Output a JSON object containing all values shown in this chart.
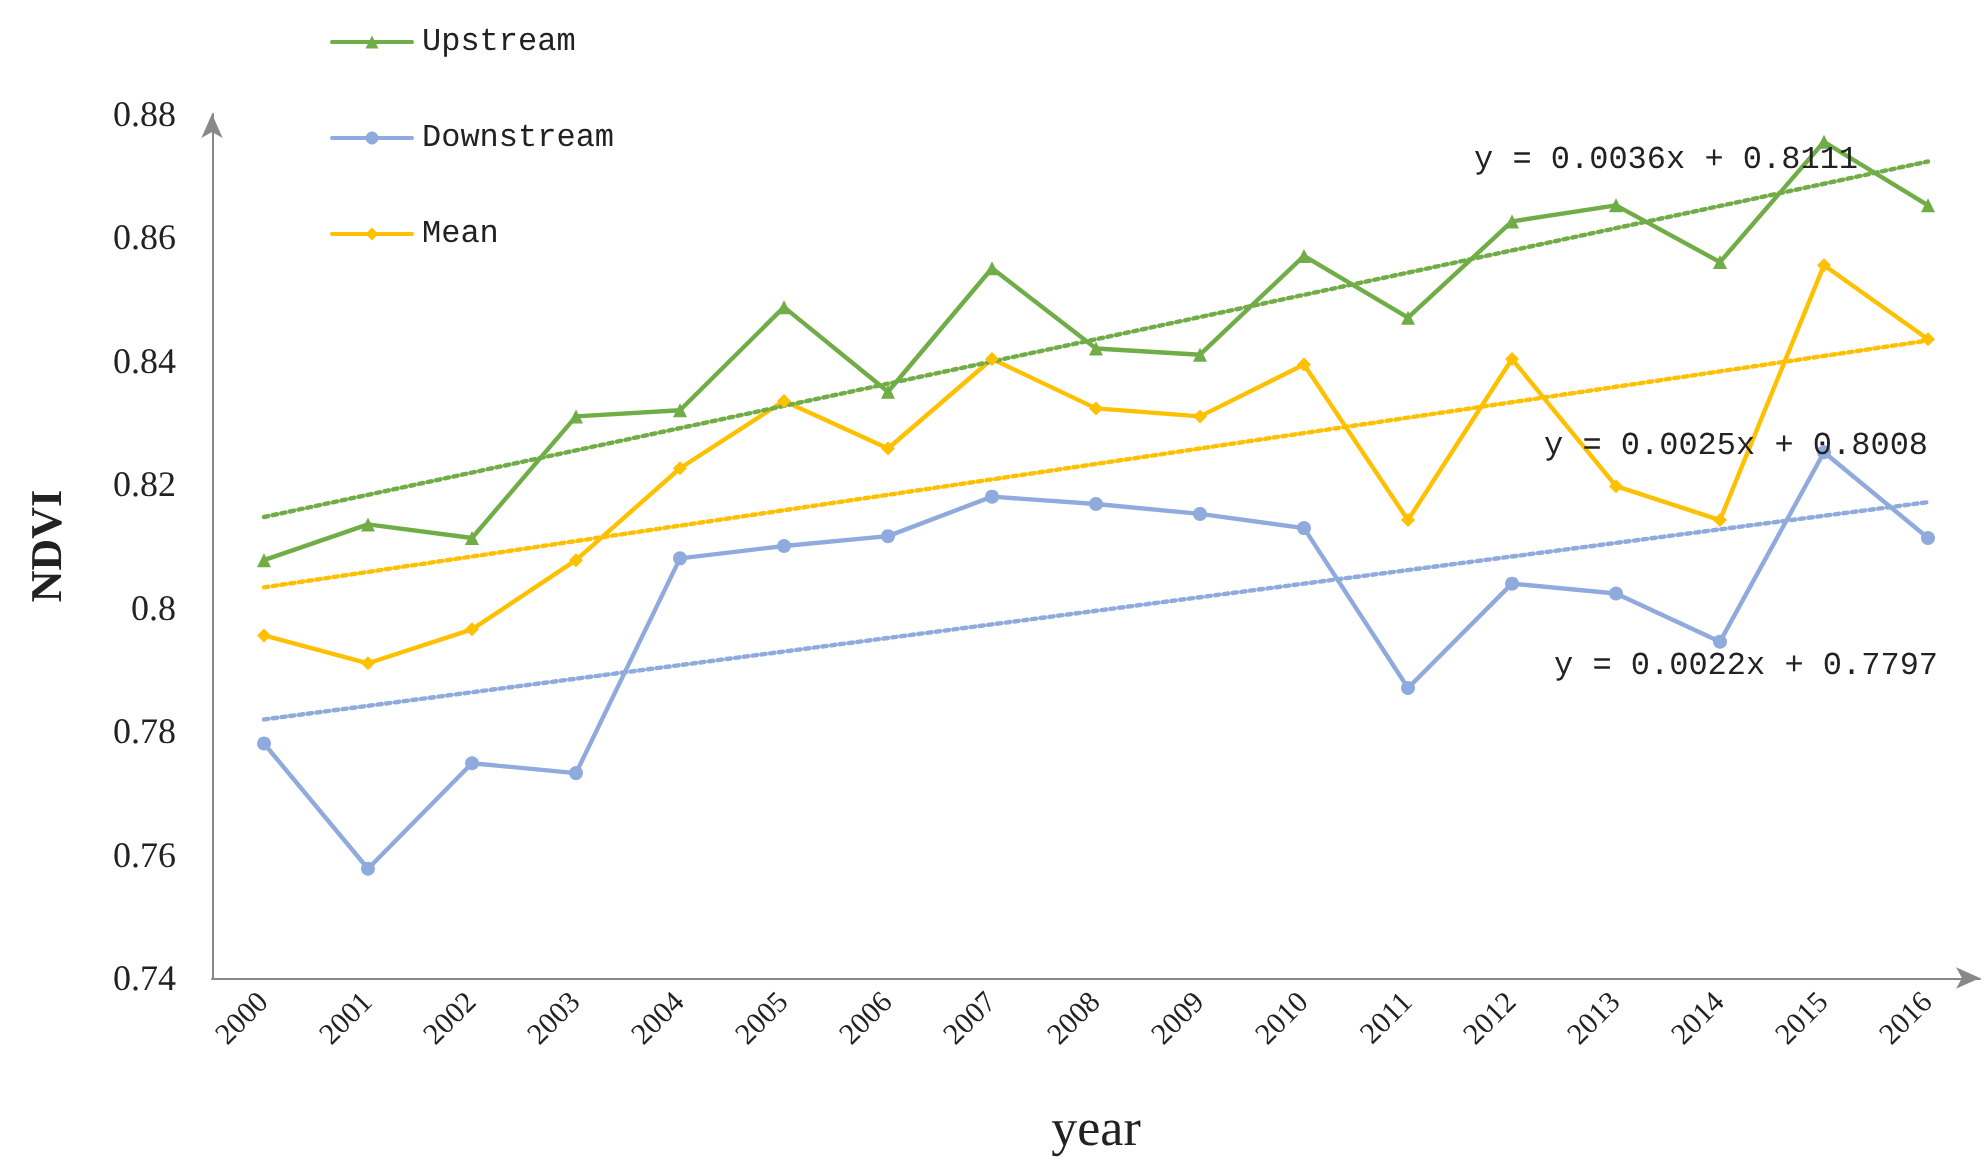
{
  "chart_data": {
    "type": "line",
    "xlabel": "year",
    "ylabel": "NDVI",
    "categories": [
      "2000",
      "2001",
      "2002",
      "2003",
      "2004",
      "2005",
      "2006",
      "2007",
      "2008",
      "2009",
      "2010",
      "2011",
      "2012",
      "2013",
      "2014",
      "2015",
      "2016"
    ],
    "series": [
      {
        "name": "Upstream",
        "color": "#70ad47",
        "marker": "triangle",
        "values": [
          0.8077,
          0.8135,
          0.8113,
          0.831,
          0.832,
          0.8487,
          0.835,
          0.855,
          0.842,
          0.841,
          0.857,
          0.847,
          0.8626,
          0.8652,
          0.856,
          0.8755,
          0.8652
        ]
      },
      {
        "name": "Downstream",
        "color": "#8faadc",
        "marker": "circle",
        "values": [
          0.778,
          0.7577,
          0.7748,
          0.7732,
          0.808,
          0.81,
          0.8116,
          0.818,
          0.8168,
          0.8152,
          0.8129,
          0.787,
          0.8039,
          0.8023,
          0.7945,
          0.8252,
          0.8113
        ]
      },
      {
        "name": "Mean",
        "color": "#ffc000",
        "marker": "diamond",
        "values": [
          0.7955,
          0.791,
          0.7965,
          0.8077,
          0.8226,
          0.8335,
          0.8258,
          0.8403,
          0.8323,
          0.831,
          0.8394,
          0.8142,
          0.8403,
          0.8197,
          0.8142,
          0.8555,
          0.8435
        ]
      },
      {
        "type": "line",
        "color": "#70ad47",
        "marker": "none",
        "line_style": "dotted",
        "values": [
          0.8147,
          0.8183,
          0.8219,
          0.8255,
          0.8291,
          0.8327,
          0.8363,
          0.8399,
          0.8435,
          0.8471,
          0.8507,
          0.8543,
          0.8579,
          0.8615,
          0.8651,
          0.8687,
          0.8723
        ]
      },
      {
        "type": "line",
        "color": "#8faadc",
        "marker": "none",
        "line_style": "dotted",
        "values": [
          0.7819,
          0.7841,
          0.7863,
          0.7885,
          0.7907,
          0.7929,
          0.7951,
          0.7973,
          0.7995,
          0.8017,
          0.8039,
          0.8061,
          0.8083,
          0.8105,
          0.8127,
          0.8149,
          0.8171
        ]
      },
      {
        "type": "line",
        "color": "#ffc000",
        "marker": "none",
        "line_style": "dotted",
        "values": [
          0.8033,
          0.8058,
          0.8083,
          0.8108,
          0.8133,
          0.8158,
          0.8183,
          0.8208,
          0.8233,
          0.8258,
          0.8283,
          0.8308,
          0.8333,
          0.8358,
          0.8383,
          0.8408,
          0.8433
        ]
      }
    ],
    "ylim": [
      0.74,
      0.88
    ],
    "yticks": [
      0.74,
      0.76,
      0.78,
      {
        "value": 0.8,
        "label": "0.8"
      },
      0.82,
      0.84,
      0.86,
      0.88
    ],
    "grid": false,
    "legend": "top left",
    "line_style": "solid",
    "annotations": [
      "y = 0.0036x + 0.8111",
      "y = 0.0025x + 0.8008",
      "y = 0.0022x + 0.7797"
    ]
  }
}
